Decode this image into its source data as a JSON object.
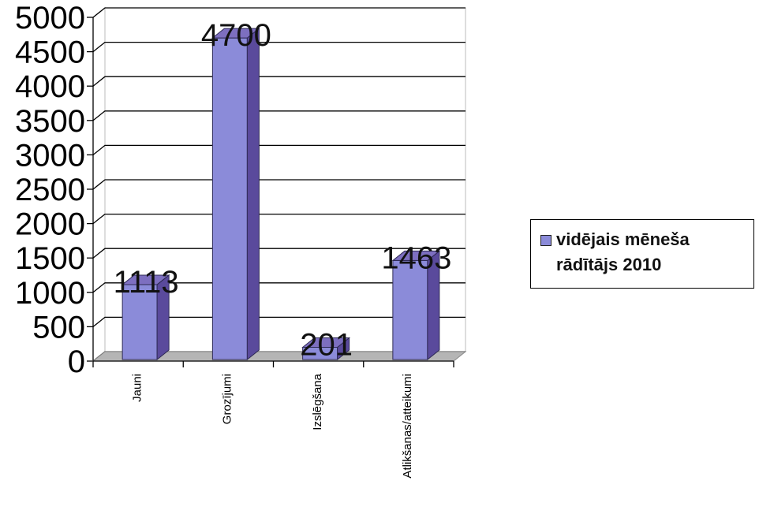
{
  "chart_data": {
    "type": "bar",
    "categories": [
      "Jauni",
      "Grozījumi",
      "Izslēgšana",
      "Atlikšanas/atteikumi"
    ],
    "series": [
      {
        "name": "vidējais mēneša rādītājs 2010",
        "values": [
          1113,
          4700,
          201,
          1463
        ]
      }
    ],
    "data_labels": [
      "1113",
      "4700",
      "201",
      "1463"
    ],
    "yticks": [
      "0",
      "500",
      "1000",
      "1500",
      "2000",
      "2500",
      "3000",
      "3500",
      "4000",
      "4500",
      "5000"
    ],
    "ylim": [
      0,
      5000
    ],
    "title": "",
    "xlabel": "",
    "ylabel": "",
    "grid": true,
    "three_d": true,
    "legend_position": "right",
    "colors": {
      "bar_front": "#8b8bd9",
      "bar_side": "#5a4a9c",
      "bar_top": "#7d6fc0",
      "floor": "#b5b5b5"
    }
  },
  "legend": {
    "label": "vidējais mēneša rādītājs 2010"
  }
}
